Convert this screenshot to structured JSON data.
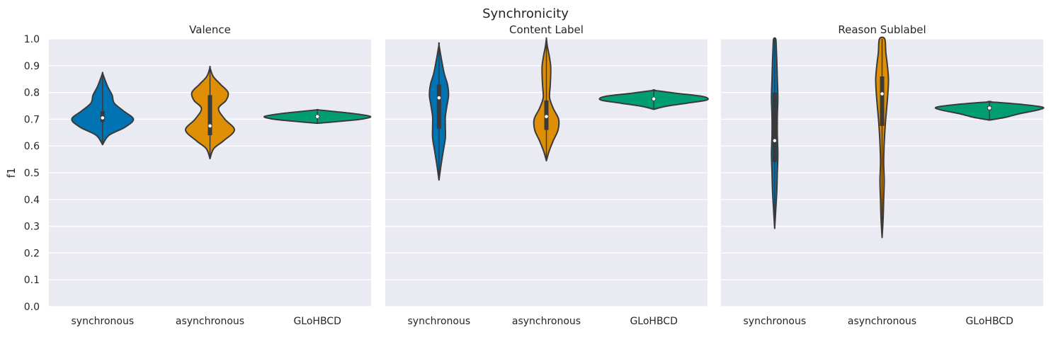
{
  "figure": {
    "title": "Synchronicity"
  },
  "chart_data": {
    "type": "violin",
    "ylabel": "f1",
    "ylim": [
      0.0,
      1.0
    ],
    "yticks": [
      "0.0",
      "0.1",
      "0.2",
      "0.3",
      "0.4",
      "0.5",
      "0.6",
      "0.7",
      "0.8",
      "0.9",
      "1.0"
    ],
    "grid": true,
    "categories": [
      "synchronous",
      "asynchronous",
      "GLoHBCD"
    ],
    "colors": {
      "synchronous": "#0173b2",
      "asynchronous": "#de8f05",
      "GLoHBCD": "#029e73",
      "panel_bg": "#eaeaf2",
      "grid": "#ffffff",
      "outline": "#3a3a3a"
    },
    "panels": [
      {
        "title": "Valence",
        "violins": [
          {
            "category": "synchronous",
            "min": 0.605,
            "max": 0.872,
            "q1": 0.69,
            "median": 0.705,
            "q3": 0.73,
            "profile": [
              [
                0.605,
                0.0
              ],
              [
                0.64,
                0.12
              ],
              [
                0.67,
                0.42
              ],
              [
                0.7,
                0.58
              ],
              [
                0.73,
                0.4
              ],
              [
                0.76,
                0.22
              ],
              [
                0.79,
                0.18
              ],
              [
                0.82,
                0.1
              ],
              [
                0.85,
                0.04
              ],
              [
                0.872,
                0.0
              ]
            ]
          },
          {
            "category": "asynchronous",
            "min": 0.553,
            "max": 0.893,
            "q1": 0.64,
            "median": 0.675,
            "q3": 0.79,
            "profile": [
              [
                0.553,
                0.0
              ],
              [
                0.59,
                0.07
              ],
              [
                0.62,
                0.26
              ],
              [
                0.66,
                0.46
              ],
              [
                0.7,
                0.28
              ],
              [
                0.74,
                0.16
              ],
              [
                0.77,
                0.3
              ],
              [
                0.8,
                0.34
              ],
              [
                0.83,
                0.2
              ],
              [
                0.86,
                0.06
              ],
              [
                0.893,
                0.0
              ]
            ]
          },
          {
            "category": "GLoHBCD",
            "min": 0.685,
            "max": 0.735,
            "q1": 0.704,
            "median": 0.71,
            "q3": 0.716,
            "profile": [
              [
                0.685,
                0.0
              ],
              [
                0.692,
                0.42
              ],
              [
                0.7,
                0.82
              ],
              [
                0.71,
                1.0
              ],
              [
                0.72,
                0.72
              ],
              [
                0.728,
                0.36
              ],
              [
                0.735,
                0.0
              ]
            ]
          }
        ]
      },
      {
        "title": "Content Label",
        "violins": [
          {
            "category": "synchronous",
            "min": 0.473,
            "max": 0.978,
            "q1": 0.665,
            "median": 0.78,
            "q3": 0.83,
            "profile": [
              [
                0.473,
                0.0
              ],
              [
                0.53,
                0.04
              ],
              [
                0.58,
                0.08
              ],
              [
                0.63,
                0.12
              ],
              [
                0.67,
                0.12
              ],
              [
                0.71,
                0.12
              ],
              [
                0.75,
                0.15
              ],
              [
                0.79,
                0.18
              ],
              [
                0.83,
                0.16
              ],
              [
                0.87,
                0.1
              ],
              [
                0.92,
                0.05
              ],
              [
                0.978,
                0.0
              ]
            ]
          },
          {
            "category": "asynchronous",
            "min": 0.545,
            "max": 1.0,
            "q1": 0.66,
            "median": 0.71,
            "q3": 0.77,
            "profile": [
              [
                0.545,
                0.0
              ],
              [
                0.58,
                0.05
              ],
              [
                0.62,
                0.13
              ],
              [
                0.66,
                0.22
              ],
              [
                0.7,
                0.23
              ],
              [
                0.74,
                0.13
              ],
              [
                0.78,
                0.06
              ],
              [
                0.82,
                0.07
              ],
              [
                0.86,
                0.08
              ],
              [
                0.9,
                0.08
              ],
              [
                0.94,
                0.05
              ],
              [
                0.97,
                0.02
              ],
              [
                1.0,
                0.0
              ]
            ]
          },
          {
            "category": "GLoHBCD",
            "min": 0.737,
            "max": 0.808,
            "q1": 0.77,
            "median": 0.776,
            "q3": 0.782,
            "profile": [
              [
                0.737,
                0.0
              ],
              [
                0.748,
                0.22
              ],
              [
                0.76,
                0.62
              ],
              [
                0.772,
                1.0
              ],
              [
                0.785,
                0.92
              ],
              [
                0.797,
                0.42
              ],
              [
                0.808,
                0.0
              ]
            ]
          }
        ]
      },
      {
        "title": "Reason Sublabel",
        "violins": [
          {
            "category": "synchronous",
            "min": 0.292,
            "max": 1.0,
            "q1": 0.54,
            "median": 0.62,
            "q3": 0.8,
            "profile": [
              [
                0.292,
                0.0
              ],
              [
                0.36,
                0.02
              ],
              [
                0.43,
                0.04
              ],
              [
                0.5,
                0.05
              ],
              [
                0.57,
                0.06
              ],
              [
                0.64,
                0.05
              ],
              [
                0.71,
                0.05
              ],
              [
                0.78,
                0.06
              ],
              [
                0.85,
                0.05
              ],
              [
                0.92,
                0.04
              ],
              [
                0.97,
                0.03
              ],
              [
                1.0,
                0.02
              ]
            ]
          },
          {
            "category": "asynchronous",
            "min": 0.258,
            "max": 1.0,
            "q1": 0.675,
            "median": 0.795,
            "q3": 0.86,
            "profile": [
              [
                0.258,
                0.0
              ],
              [
                0.33,
                0.02
              ],
              [
                0.4,
                0.03
              ],
              [
                0.47,
                0.04
              ],
              [
                0.54,
                0.03
              ],
              [
                0.61,
                0.04
              ],
              [
                0.68,
                0.06
              ],
              [
                0.75,
                0.09
              ],
              [
                0.8,
                0.11
              ],
              [
                0.85,
                0.12
              ],
              [
                0.9,
                0.1
              ],
              [
                0.95,
                0.07
              ],
              [
                1.0,
                0.05
              ]
            ]
          },
          {
            "category": "GLoHBCD",
            "min": 0.697,
            "max": 0.765,
            "q1": 0.735,
            "median": 0.742,
            "q3": 0.749,
            "profile": [
              [
                0.697,
                0.0
              ],
              [
                0.707,
                0.3
              ],
              [
                0.72,
                0.55
              ],
              [
                0.735,
                0.92
              ],
              [
                0.745,
                1.0
              ],
              [
                0.755,
                0.62
              ],
              [
                0.765,
                0.0
              ]
            ]
          }
        ]
      }
    ]
  }
}
